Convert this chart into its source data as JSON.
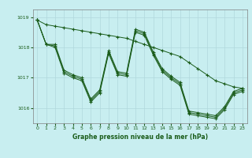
{
  "title": "Graphe pression niveau de la mer (hPa)",
  "background_color": "#c8eef0",
  "grid_color": "#b0d8dc",
  "line_color": "#1a5c1a",
  "marker_color": "#1a5c1a",
  "xlim": [
    -0.5,
    23.5
  ],
  "ylim": [
    1015.5,
    1019.25
  ],
  "yticks": [
    1016,
    1017,
    1018,
    1019
  ],
  "ytick_labels": [
    "1016",
    "1017",
    "1018",
    "1019"
  ],
  "xticks": [
    0,
    1,
    2,
    3,
    4,
    5,
    6,
    7,
    8,
    9,
    10,
    11,
    12,
    13,
    14,
    15,
    16,
    17,
    18,
    19,
    20,
    21,
    22,
    23
  ],
  "series": [
    {
      "x": [
        0,
        1,
        2,
        3,
        4,
        5,
        6,
        7,
        8,
        9,
        10,
        11,
        12,
        13,
        14,
        15,
        16,
        17,
        18,
        19,
        20,
        21,
        22,
        23
      ],
      "y": [
        1018.9,
        1018.75,
        1018.7,
        1018.65,
        1018.6,
        1018.55,
        1018.5,
        1018.45,
        1018.4,
        1018.35,
        1018.3,
        1018.2,
        1018.1,
        1018.0,
        1017.9,
        1017.8,
        1017.7,
        1017.5,
        1017.3,
        1017.1,
        1016.9,
        1016.8,
        1016.7,
        1016.65
      ]
    },
    {
      "x": [
        0,
        1,
        2,
        3,
        4,
        5,
        6,
        7,
        8,
        9,
        10,
        11,
        12,
        13,
        14,
        15,
        16,
        17,
        18,
        19,
        20,
        21,
        22,
        23
      ],
      "y": [
        1018.9,
        1018.1,
        1018.1,
        1017.25,
        1017.1,
        1017.0,
        1016.3,
        1016.6,
        1017.9,
        1017.2,
        1017.15,
        1018.6,
        1018.5,
        1017.85,
        1017.3,
        1017.05,
        1016.85,
        1015.9,
        1015.85,
        1015.8,
        1015.75,
        1016.05,
        1016.55,
        1016.65
      ]
    },
    {
      "x": [
        0,
        1,
        2,
        3,
        4,
        5,
        6,
        7,
        8,
        9,
        10,
        11,
        12,
        13,
        14,
        15,
        16,
        17,
        18,
        19,
        20,
        21,
        22,
        23
      ],
      "y": [
        1018.9,
        1018.1,
        1018.05,
        1017.2,
        1017.05,
        1016.95,
        1016.25,
        1016.55,
        1017.85,
        1017.15,
        1017.1,
        1018.55,
        1018.45,
        1017.8,
        1017.25,
        1017.0,
        1016.8,
        1015.85,
        1015.8,
        1015.75,
        1015.7,
        1016.0,
        1016.5,
        1016.6
      ]
    },
    {
      "x": [
        0,
        1,
        2,
        3,
        4,
        5,
        6,
        7,
        8,
        9,
        10,
        11,
        12,
        13,
        14,
        15,
        16,
        17,
        18,
        19,
        20,
        21,
        22,
        23
      ],
      "y": [
        1018.9,
        1018.1,
        1018.0,
        1017.15,
        1017.0,
        1016.9,
        1016.2,
        1016.5,
        1017.8,
        1017.1,
        1017.05,
        1018.5,
        1018.4,
        1017.75,
        1017.2,
        1016.95,
        1016.75,
        1015.8,
        1015.75,
        1015.7,
        1015.65,
        1015.95,
        1016.45,
        1016.55
      ]
    }
  ]
}
